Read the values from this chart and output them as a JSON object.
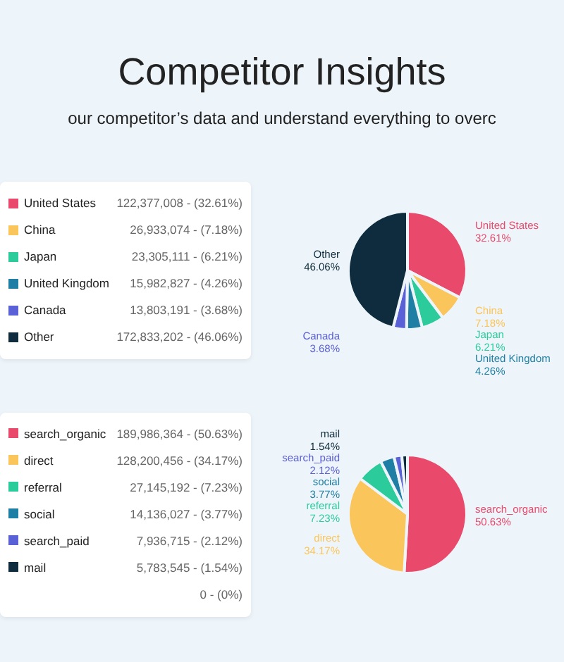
{
  "chart_data": [
    {
      "type": "pie",
      "title": "Competitor Insights",
      "subtitle": "our competitor’s data and understand everything to overc",
      "categories": [
        "United States",
        "China",
        "Japan",
        "United Kingdom",
        "Canada",
        "Other"
      ],
      "values": [
        122377008,
        26933074,
        23305111,
        15982827,
        13803191,
        172833202
      ],
      "colors": [
        "#e9496b",
        "#fac55a",
        "#2ccb9c",
        "#1f7ea3",
        "#5a60d6",
        "#0e2c3d"
      ],
      "legend": "left",
      "value_labels": [
        "122,377,008 - (32.61%)",
        "26,933,074 - (7.18%)",
        "23,305,111 - (6.21%)",
        "15,982,827 - (4.26%)",
        "13,803,191 - (3.68%)",
        "172,833,202 - (46.06%)"
      ],
      "annotations": [
        "United States 32.61%",
        "China 7.18%",
        "Japan 6.21%",
        "United Kingdom 4.26%",
        "Canada 3.68%",
        "Other 46.06%"
      ]
    },
    {
      "type": "pie",
      "categories": [
        "search_organic",
        "direct",
        "referral",
        "social",
        "search_paid",
        "mail",
        null
      ],
      "values": [
        189986364,
        128200456,
        27145192,
        14136027,
        7936715,
        5783545,
        0
      ],
      "colors": [
        "#e9496b",
        "#fac55a",
        "#2ccb9c",
        "#1f7ea3",
        "#5a60d6",
        "#0e2c3d",
        "#999999"
      ],
      "legend": "left",
      "value_labels": [
        "189,986,364 - (50.63%)",
        "128,200,456 - (34.17%)",
        "27,145,192 - (7.23%)",
        "14,136,027 - (3.77%)",
        "7,936,715 - (2.12%)",
        "5,783,545 - (1.54%)",
        "0 - (0%)"
      ],
      "annotations": [
        "search_organic 50.63%",
        "direct 34.17%",
        "referral 7.23%",
        "social 3.77%",
        "search_paid 2.12%",
        "mail 1.54%"
      ]
    }
  ]
}
